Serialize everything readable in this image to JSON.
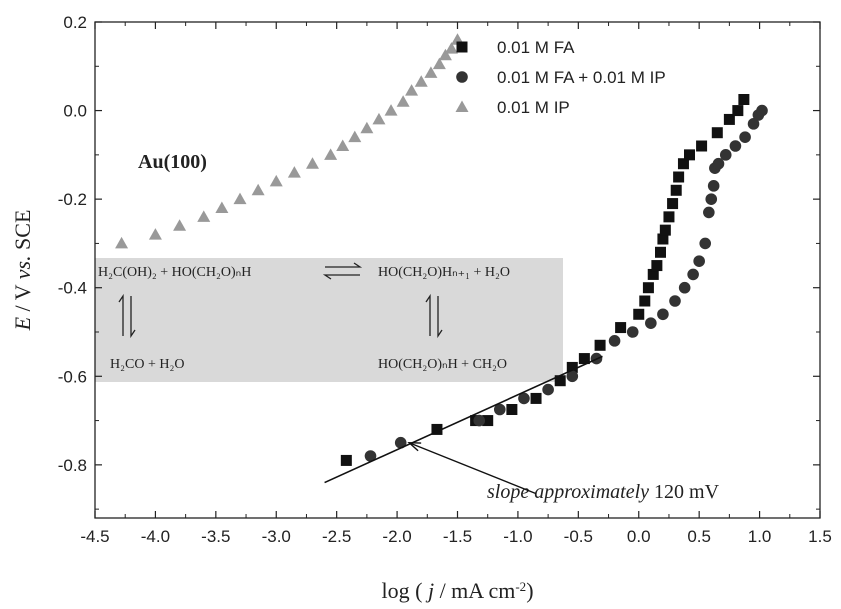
{
  "chart_data": {
    "type": "scatter",
    "xlabel": {
      "pre": "log ( ",
      "j": "j",
      "mid": " / mA cm",
      "sup": "-2",
      "post": ")"
    },
    "ylabel": {
      "E": "E",
      "rest": " / V ",
      "vs": "vs.",
      "sce": " SCE"
    },
    "xlim": [
      -4.5,
      1.5
    ],
    "ylim": [
      -0.92,
      0.2
    ],
    "x_ticks": [
      "-4.5",
      "-4.0",
      "-3.5",
      "-3.0",
      "-2.5",
      "-2.0",
      "-1.5",
      "-1.0",
      "-0.5",
      "0.0",
      "0.5",
      "1.0",
      "1.5"
    ],
    "y_ticks": [
      "0.2",
      "0.0",
      "-0.2",
      "-0.4",
      "-0.6",
      "-0.8"
    ],
    "legend_position": "top-right",
    "grid": false,
    "series": [
      {
        "name": "0.01 M FA",
        "marker": "square",
        "color": "#111111",
        "points": [
          [
            -2.42,
            -0.79
          ],
          [
            -1.67,
            -0.72
          ],
          [
            -1.35,
            -0.7
          ],
          [
            -1.25,
            -0.7
          ],
          [
            -1.05,
            -0.675
          ],
          [
            -0.85,
            -0.65
          ],
          [
            -0.65,
            -0.61
          ],
          [
            -0.55,
            -0.58
          ],
          [
            -0.45,
            -0.56
          ],
          [
            -0.32,
            -0.53
          ],
          [
            -0.15,
            -0.49
          ],
          [
            0.0,
            -0.46
          ],
          [
            0.05,
            -0.43
          ],
          [
            0.08,
            -0.4
          ],
          [
            0.12,
            -0.37
          ],
          [
            0.15,
            -0.35
          ],
          [
            0.18,
            -0.32
          ],
          [
            0.2,
            -0.29
          ],
          [
            0.22,
            -0.27
          ],
          [
            0.25,
            -0.24
          ],
          [
            0.28,
            -0.21
          ],
          [
            0.31,
            -0.18
          ],
          [
            0.33,
            -0.15
          ],
          [
            0.37,
            -0.12
          ],
          [
            0.42,
            -0.1
          ],
          [
            0.52,
            -0.08
          ],
          [
            0.65,
            -0.05
          ],
          [
            0.75,
            -0.02
          ],
          [
            0.82,
            0.0
          ],
          [
            0.87,
            0.025
          ]
        ]
      },
      {
        "name": "0.01 M FA + 0.01 M IP",
        "marker": "circle",
        "color": "#333333",
        "points": [
          [
            -2.22,
            -0.78
          ],
          [
            -1.97,
            -0.75
          ],
          [
            -1.32,
            -0.7
          ],
          [
            -1.15,
            -0.675
          ],
          [
            -0.95,
            -0.65
          ],
          [
            -0.75,
            -0.63
          ],
          [
            -0.55,
            -0.6
          ],
          [
            -0.35,
            -0.56
          ],
          [
            -0.2,
            -0.52
          ],
          [
            -0.05,
            -0.5
          ],
          [
            0.1,
            -0.48
          ],
          [
            0.2,
            -0.46
          ],
          [
            0.3,
            -0.43
          ],
          [
            0.38,
            -0.4
          ],
          [
            0.45,
            -0.37
          ],
          [
            0.5,
            -0.34
          ],
          [
            0.55,
            -0.3
          ],
          [
            0.58,
            -0.23
          ],
          [
            0.6,
            -0.2
          ],
          [
            0.62,
            -0.17
          ],
          [
            0.63,
            -0.13
          ],
          [
            0.66,
            -0.12
          ],
          [
            0.72,
            -0.1
          ],
          [
            0.8,
            -0.08
          ],
          [
            0.88,
            -0.06
          ],
          [
            0.95,
            -0.03
          ],
          [
            0.99,
            -0.01
          ],
          [
            1.02,
            0.0
          ]
        ]
      },
      {
        "name": "0.01 M IP",
        "marker": "triangle",
        "color": "#999999",
        "points": [
          [
            -4.28,
            -0.3
          ],
          [
            -4.0,
            -0.28
          ],
          [
            -3.8,
            -0.26
          ],
          [
            -3.6,
            -0.24
          ],
          [
            -3.45,
            -0.22
          ],
          [
            -3.3,
            -0.2
          ],
          [
            -3.15,
            -0.18
          ],
          [
            -3.0,
            -0.16
          ],
          [
            -2.85,
            -0.14
          ],
          [
            -2.7,
            -0.12
          ],
          [
            -2.55,
            -0.1
          ],
          [
            -2.45,
            -0.08
          ],
          [
            -2.35,
            -0.06
          ],
          [
            -2.25,
            -0.04
          ],
          [
            -2.15,
            -0.02
          ],
          [
            -2.05,
            0.0
          ],
          [
            -1.95,
            0.02
          ],
          [
            -1.88,
            0.045
          ],
          [
            -1.8,
            0.065
          ],
          [
            -1.72,
            0.085
          ],
          [
            -1.65,
            0.105
          ],
          [
            -1.6,
            0.125
          ],
          [
            -1.55,
            0.14
          ],
          [
            -1.5,
            0.16
          ]
        ]
      }
    ],
    "fit_line": {
      "from": [
        -2.6,
        -0.84
      ],
      "to": [
        -0.3,
        -0.555
      ]
    },
    "annotations": {
      "surface": "Au(100)",
      "slope_italic": "slope approximately",
      "slope_value": " 120 mV",
      "arrow_tip": [
        -1.9,
        -0.75
      ],
      "arrow_tail": [
        -0.85,
        -0.865
      ]
    },
    "reaction_box": {
      "eq1_left": "H₂C(OH)₂ + HO(CH₂O)ₙH",
      "eq1_right": "HO(CH₂O)Hₙ₊₁ + H₂O",
      "eq2_left": "H₂CO + H₂O",
      "eq2_right": "HO(CH₂O)ₙH + CH₂O"
    }
  }
}
